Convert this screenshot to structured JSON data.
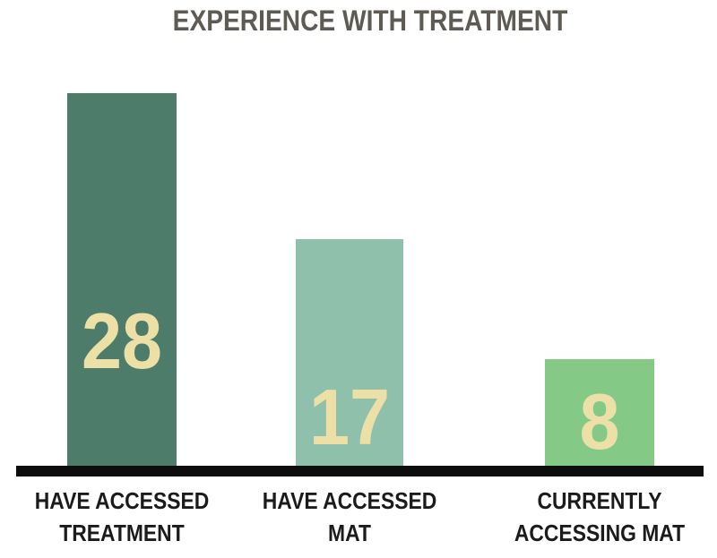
{
  "colors": {
    "background": "#ffffff",
    "title": "#5e5b55",
    "label": "#1b1b1b",
    "baseline": "#0d0d0d",
    "value_text": "#ede0a7"
  },
  "chart_data": {
    "type": "bar",
    "title": "EXPERIENCE WITH TREATMENT",
    "categories": [
      "HAVE ACCESSED\nTREATMENT",
      "HAVE ACCESSED\nMAT",
      "CURRENTLY\nACCESSING MAT"
    ],
    "values": [
      28,
      17,
      8
    ],
    "value_labels": [
      "28",
      "17",
      "8"
    ],
    "bar_colors": [
      "#4e7c6a",
      "#8fc0ac",
      "#85c987"
    ],
    "xlabel": "",
    "ylabel": "",
    "ylim": [
      0,
      28
    ],
    "grid": false,
    "legend": null,
    "value_label_position": "inside-bottom",
    "baseline_style": "thick-black"
  }
}
